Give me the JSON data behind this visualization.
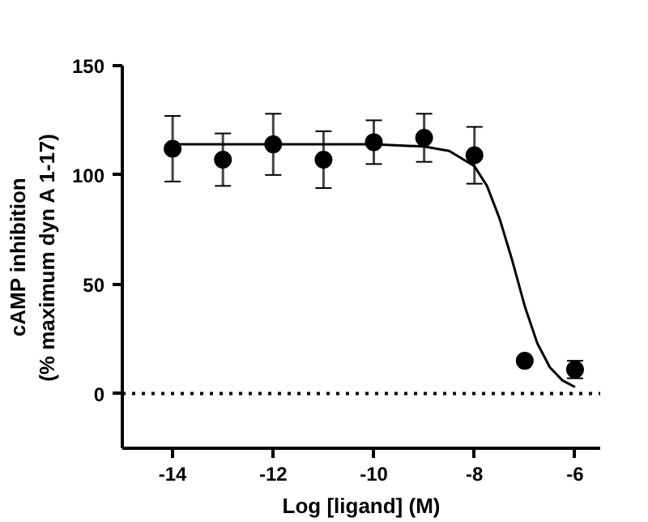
{
  "chart_data": {
    "type": "scatter",
    "xlabel": "Log [ligand] (M)",
    "ylabel": "cAMP inhibition\n(% maximum dyn A 1-17)",
    "xlim": [
      -15,
      -5.5
    ],
    "ylim": [
      -25,
      150
    ],
    "xticks": [
      -14,
      -12,
      -10,
      -8,
      -6
    ],
    "yticks": [
      0,
      50,
      100,
      150
    ],
    "grid": false,
    "series": [
      {
        "marker": "circle",
        "color": "#000000",
        "x": [
          -14,
          -13,
          -12,
          -11,
          -10,
          -9,
          -8,
          -7,
          -6
        ],
        "values": [
          112,
          107,
          114,
          107,
          115,
          117,
          109,
          15,
          11
        ],
        "errors": [
          15,
          12,
          14,
          13,
          10,
          11,
          13,
          null,
          4
        ]
      },
      {
        "type": "line",
        "color": "#000000",
        "x": [
          -14,
          -10,
          -9,
          -8.5,
          -8,
          -7.75,
          -7.5,
          -7.25,
          -7,
          -6.75,
          -6.5,
          -6.25,
          -6
        ],
        "values": [
          114,
          114,
          113,
          111,
          104,
          95,
          80,
          61,
          40,
          23,
          12,
          6,
          3
        ]
      }
    ],
    "ref_lines": [
      {
        "axis": "y",
        "value": 0,
        "line_style": "dotted",
        "color": "#000000"
      }
    ]
  }
}
